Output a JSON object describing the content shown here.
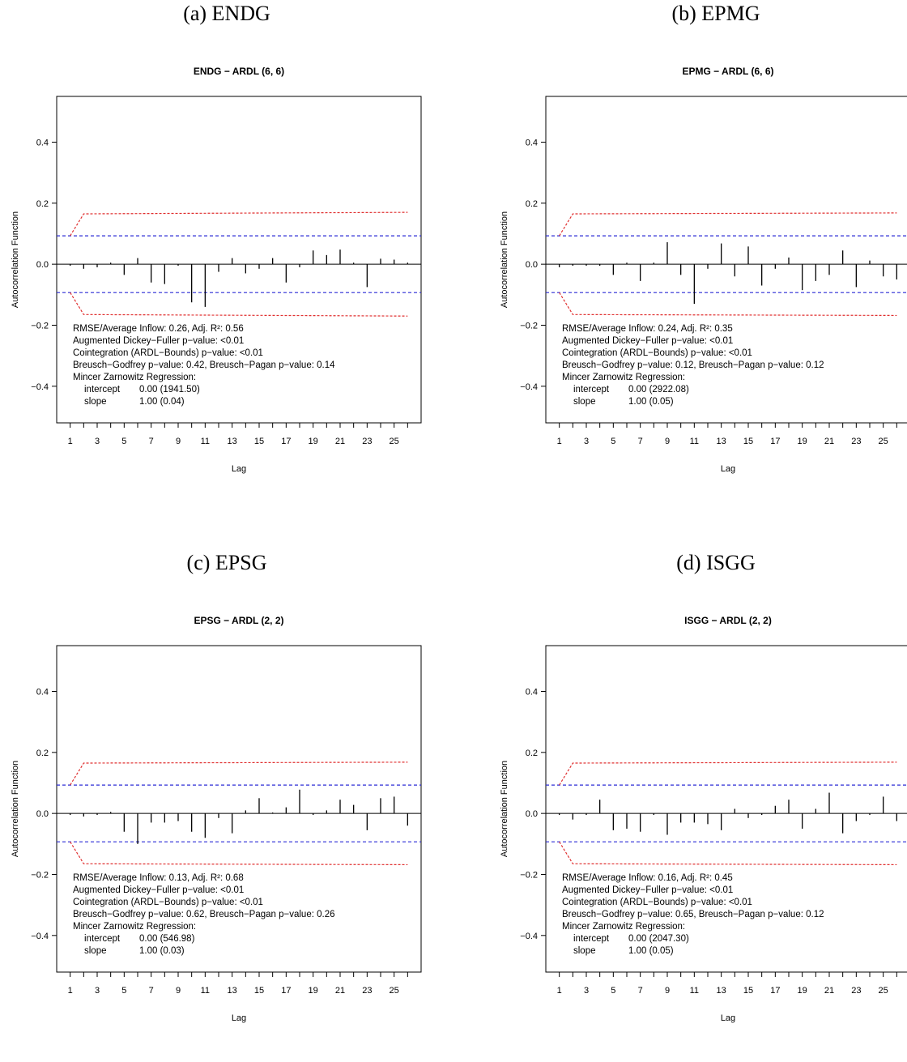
{
  "colors": {
    "ci_blue": "#2b2bd6",
    "band_red": "#e03030",
    "bar": "#000000",
    "zero": "#000000"
  },
  "panels": [
    {
      "caption": "(a) ENDG",
      "annotations": {
        "line1": "RMSE/Average Inflow:  0.26, Adj. R²:  0.56",
        "line2": "Augmented Dickey−Fuller p−value:  <0.01",
        "line3": "Cointegration (ARDL−Bounds) p−value:  <0.01",
        "line4": "Breusch−Godfrey p−value:  0.42, Breusch−Pagan p−value:  0.14",
        "line5": "Mincer Zarnowitz Regression:",
        "intercept_label": "intercept",
        "intercept_value": "0.00 (1941.50)",
        "slope_label": "slope",
        "slope_value": "1.00  (0.04)"
      }
    },
    {
      "caption": "(b) EPMG",
      "annotations": {
        "line1": "RMSE/Average Inflow:  0.24, Adj. R²:  0.35",
        "line2": "Augmented Dickey−Fuller p−value:  <0.01",
        "line3": "Cointegration (ARDL−Bounds) p−value:  <0.01",
        "line4": "Breusch−Godfrey p−value:  0.12, Breusch−Pagan p−value:  0.12",
        "line5": "Mincer Zarnowitz Regression:",
        "intercept_label": "intercept",
        "intercept_value": "0.00 (2922.08)",
        "slope_label": "slope",
        "slope_value": "1.00  (0.05)"
      }
    },
    {
      "caption": "(c) EPSG",
      "annotations": {
        "line1": "RMSE/Average Inflow:  0.13, Adj. R²:  0.68",
        "line2": "Augmented Dickey−Fuller p−value:  <0.01",
        "line3": "Cointegration (ARDL−Bounds) p−value:  <0.01",
        "line4": "Breusch−Godfrey p−value:  0.62, Breusch−Pagan p−value:  0.26",
        "line5": "Mincer Zarnowitz Regression:",
        "intercept_label": "intercept",
        "intercept_value": "0.00 (546.98)",
        "slope_label": "slope",
        "slope_value": "1.00  (0.03)"
      }
    },
    {
      "caption": "(d) ISGG",
      "annotations": {
        "line1": "RMSE/Average Inflow:  0.16, Adj. R²:  0.45",
        "line2": "Augmented Dickey−Fuller p−value:  <0.01",
        "line3": "Cointegration (ARDL−Bounds) p−value:  <0.01",
        "line4": "Breusch−Godfrey p−value:  0.65, Breusch−Pagan p−value:  0.12",
        "line5": "Mincer Zarnowitz Regression:",
        "intercept_label": "intercept",
        "intercept_value": "0.00 (2047.30)",
        "slope_label": "slope",
        "slope_value": "1.00  (0.05)"
      }
    }
  ],
  "chart_data": [
    {
      "type": "bar",
      "title": "ENDG − ARDL (6, 6)",
      "xlabel": "Lag",
      "ylabel": "Autocorrelation Function",
      "ylim": [
        -0.52,
        0.55
      ],
      "xlim": [
        0,
        27
      ],
      "yticks": [
        -0.4,
        -0.2,
        0.0,
        0.2,
        0.4
      ],
      "ytick_labels": [
        "−0.4",
        "−0.2",
        "0.0",
        "0.2",
        "0.4"
      ],
      "xticks": [
        1,
        3,
        5,
        7,
        9,
        11,
        13,
        15,
        17,
        19,
        21,
        23,
        25
      ],
      "x": [
        1,
        2,
        3,
        4,
        5,
        6,
        7,
        8,
        9,
        10,
        11,
        12,
        13,
        14,
        15,
        16,
        17,
        18,
        19,
        20,
        21,
        22,
        23,
        24,
        25,
        26
      ],
      "values": [
        -0.005,
        -0.015,
        -0.01,
        0.005,
        -0.035,
        0.02,
        -0.06,
        -0.065,
        -0.005,
        -0.125,
        -0.14,
        -0.025,
        0.02,
        -0.03,
        -0.015,
        0.02,
        -0.06,
        -0.01,
        0.045,
        0.03,
        0.048,
        0.005,
        -0.075,
        0.018,
        0.015,
        0.005
      ],
      "ci": 0.093,
      "band": {
        "start": 0.093,
        "end": 0.165,
        "final": 0.17
      }
    },
    {
      "type": "bar",
      "title": "EPMG − ARDL (6, 6)",
      "xlabel": "Lag",
      "ylabel": "Autocorrelation Function",
      "ylim": [
        -0.52,
        0.55
      ],
      "xlim": [
        0,
        27
      ],
      "yticks": [
        -0.4,
        -0.2,
        0.0,
        0.2,
        0.4
      ],
      "ytick_labels": [
        "−0.4",
        "−0.2",
        "0.0",
        "0.2",
        "0.4"
      ],
      "xticks": [
        1,
        3,
        5,
        7,
        9,
        11,
        13,
        15,
        17,
        19,
        21,
        23,
        25
      ],
      "x": [
        1,
        2,
        3,
        4,
        5,
        6,
        7,
        8,
        9,
        10,
        11,
        12,
        13,
        14,
        15,
        16,
        17,
        18,
        19,
        20,
        21,
        22,
        23,
        24,
        25,
        26
      ],
      "values": [
        -0.01,
        -0.005,
        -0.005,
        -0.005,
        -0.035,
        0.005,
        -0.055,
        0.005,
        0.072,
        -0.035,
        -0.13,
        -0.015,
        0.068,
        -0.04,
        0.058,
        -0.07,
        -0.015,
        0.022,
        -0.085,
        -0.055,
        -0.035,
        0.045,
        -0.075,
        0.012,
        -0.04,
        -0.05
      ],
      "ci": 0.093,
      "band": {
        "start": 0.093,
        "end": 0.165,
        "final": 0.168
      }
    },
    {
      "type": "bar",
      "title": "EPSG − ARDL (2, 2)",
      "xlabel": "Lag",
      "ylabel": "Autocorrelation Function",
      "ylim": [
        -0.52,
        0.55
      ],
      "xlim": [
        0,
        27
      ],
      "yticks": [
        -0.4,
        -0.2,
        0.0,
        0.2,
        0.4
      ],
      "ytick_labels": [
        "−0.4",
        "−0.2",
        "0.0",
        "0.2",
        "0.4"
      ],
      "xticks": [
        1,
        3,
        5,
        7,
        9,
        11,
        13,
        15,
        17,
        19,
        21,
        23,
        25
      ],
      "x": [
        1,
        2,
        3,
        4,
        5,
        6,
        7,
        8,
        9,
        10,
        11,
        12,
        13,
        14,
        15,
        16,
        17,
        18,
        19,
        20,
        21,
        22,
        23,
        24,
        25,
        26
      ],
      "values": [
        -0.005,
        -0.01,
        -0.005,
        0.005,
        -0.06,
        -0.1,
        -0.03,
        -0.03,
        -0.025,
        -0.06,
        -0.08,
        -0.015,
        -0.065,
        0.01,
        0.05,
        0.003,
        0.02,
        0.078,
        -0.005,
        0.01,
        0.045,
        0.028,
        -0.055,
        0.05,
        0.055,
        -0.04
      ],
      "ci": 0.093,
      "band": {
        "start": 0.093,
        "end": 0.165,
        "final": 0.168
      }
    },
    {
      "type": "bar",
      "title": "ISGG − ARDL (2, 2)",
      "xlabel": "Lag",
      "ylabel": "Autocorrelation Function",
      "ylim": [
        -0.52,
        0.55
      ],
      "xlim": [
        0,
        27
      ],
      "yticks": [
        -0.4,
        -0.2,
        0.0,
        0.2,
        0.4
      ],
      "ytick_labels": [
        "−0.4",
        "−0.2",
        "0.0",
        "0.2",
        "0.4"
      ],
      "xticks": [
        1,
        3,
        5,
        7,
        9,
        11,
        13,
        15,
        17,
        19,
        21,
        23,
        25
      ],
      "x": [
        1,
        2,
        3,
        4,
        5,
        6,
        7,
        8,
        9,
        10,
        11,
        12,
        13,
        14,
        15,
        16,
        17,
        18,
        19,
        20,
        21,
        22,
        23,
        24,
        25,
        26
      ],
      "values": [
        -0.005,
        -0.02,
        -0.005,
        0.045,
        -0.055,
        -0.05,
        -0.06,
        -0.005,
        -0.07,
        -0.03,
        -0.03,
        -0.035,
        -0.055,
        0.015,
        -0.015,
        -0.005,
        0.025,
        0.045,
        -0.05,
        0.015,
        0.068,
        -0.065,
        -0.025,
        -0.005,
        0.055,
        -0.025
      ],
      "ci": 0.093,
      "band": {
        "start": 0.093,
        "end": 0.165,
        "final": 0.168
      }
    }
  ]
}
